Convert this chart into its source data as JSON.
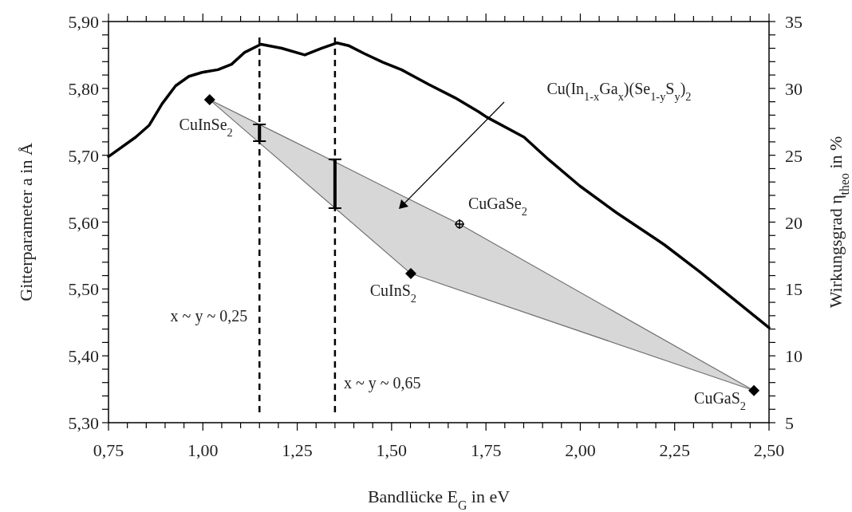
{
  "chart_data": {
    "type": "line",
    "xlabel": "Bandlücke E$_{G}$ in eV",
    "ylabel": "Gitterparameter a in Å",
    "y2label": "Wirkungsgrad η$_{theo}$ in %",
    "xlim": [
      0.75,
      2.5
    ],
    "ylim": [
      5.3,
      5.9
    ],
    "y2lim": [
      5,
      35
    ],
    "xticks": [
      {
        "value": 0.75,
        "label": "0,75"
      },
      {
        "value": 0.8,
        "label": null
      },
      {
        "value": 0.85,
        "label": null
      },
      {
        "value": 0.9,
        "label": null
      },
      {
        "value": 0.95,
        "label": null
      },
      {
        "value": 1.0,
        "label": "1,00"
      },
      {
        "value": 1.05,
        "label": null
      },
      {
        "value": 1.1,
        "label": null
      },
      {
        "value": 1.15,
        "label": null
      },
      {
        "value": 1.2,
        "label": null
      },
      {
        "value": 1.25,
        "label": "1,25"
      },
      {
        "value": 1.3,
        "label": null
      },
      {
        "value": 1.35,
        "label": null
      },
      {
        "value": 1.4,
        "label": null
      },
      {
        "value": 1.45,
        "label": null
      },
      {
        "value": 1.5,
        "label": "1,50"
      },
      {
        "value": 1.55,
        "label": null
      },
      {
        "value": 1.6,
        "label": null
      },
      {
        "value": 1.65,
        "label": null
      },
      {
        "value": 1.7,
        "label": null
      },
      {
        "value": 1.75,
        "label": "1,75"
      },
      {
        "value": 1.8,
        "label": null
      },
      {
        "value": 1.85,
        "label": null
      },
      {
        "value": 1.9,
        "label": null
      },
      {
        "value": 1.95,
        "label": null
      },
      {
        "value": 2.0,
        "label": "2,00"
      },
      {
        "value": 2.05,
        "label": null
      },
      {
        "value": 2.1,
        "label": null
      },
      {
        "value": 2.15,
        "label": null
      },
      {
        "value": 2.2,
        "label": null
      },
      {
        "value": 2.25,
        "label": "2,25"
      },
      {
        "value": 2.3,
        "label": null
      },
      {
        "value": 2.35,
        "label": null
      },
      {
        "value": 2.4,
        "label": null
      },
      {
        "value": 2.45,
        "label": null
      },
      {
        "value": 2.5,
        "label": "2,50"
      }
    ],
    "yticks": [
      {
        "value": 5.3,
        "label": "5,30"
      },
      {
        "value": 5.32,
        "label": null
      },
      {
        "value": 5.34,
        "label": null
      },
      {
        "value": 5.36,
        "label": null
      },
      {
        "value": 5.38,
        "label": null
      },
      {
        "value": 5.4,
        "label": "5,40"
      },
      {
        "value": 5.42,
        "label": null
      },
      {
        "value": 5.44,
        "label": null
      },
      {
        "value": 5.46,
        "label": null
      },
      {
        "value": 5.48,
        "label": null
      },
      {
        "value": 5.5,
        "label": "5,50"
      },
      {
        "value": 5.52,
        "label": null
      },
      {
        "value": 5.54,
        "label": null
      },
      {
        "value": 5.56,
        "label": null
      },
      {
        "value": 5.58,
        "label": null
      },
      {
        "value": 5.6,
        "label": "5,60"
      },
      {
        "value": 5.62,
        "label": null
      },
      {
        "value": 5.64,
        "label": null
      },
      {
        "value": 5.66,
        "label": null
      },
      {
        "value": 5.68,
        "label": null
      },
      {
        "value": 5.7,
        "label": "5,70"
      },
      {
        "value": 5.72,
        "label": null
      },
      {
        "value": 5.74,
        "label": null
      },
      {
        "value": 5.76,
        "label": null
      },
      {
        "value": 5.78,
        "label": null
      },
      {
        "value": 5.8,
        "label": "5,80"
      },
      {
        "value": 5.82,
        "label": null
      },
      {
        "value": 5.84,
        "label": null
      },
      {
        "value": 5.86,
        "label": null
      },
      {
        "value": 5.88,
        "label": null
      },
      {
        "value": 5.9,
        "label": "5,90"
      }
    ],
    "y2ticks": [
      5,
      {
        "value": 6,
        "label": null
      },
      {
        "value": 7,
        "label": null
      },
      {
        "value": 8,
        "label": null
      },
      {
        "value": 9,
        "label": null
      },
      10,
      {
        "value": 11,
        "label": null
      },
      {
        "value": 12,
        "label": null
      },
      {
        "value": 13,
        "label": null
      },
      {
        "value": 14,
        "label": null
      },
      15,
      {
        "value": 16,
        "label": null
      },
      {
        "value": 17,
        "label": null
      },
      {
        "value": 18,
        "label": null
      },
      {
        "value": 19,
        "label": null
      },
      20,
      {
        "value": 21,
        "label": null
      },
      {
        "value": 22,
        "label": null
      },
      {
        "value": 23,
        "label": null
      },
      {
        "value": 24,
        "label": null
      },
      25,
      {
        "value": 26,
        "label": null
      },
      {
        "value": 27,
        "label": null
      },
      {
        "value": 28,
        "label": null
      },
      {
        "value": 29,
        "label": null
      },
      30,
      {
        "value": 31,
        "label": null
      },
      {
        "value": 32,
        "label": null
      },
      {
        "value": 33,
        "label": null
      },
      {
        "value": 34,
        "label": null
      },
      35
    ],
    "series": [
      {
        "type": "line",
        "line_style": "solid",
        "color": "#707070",
        "x": [
          1.018,
          1.15,
          1.35,
          1.551,
          1.68,
          2.46
        ],
        "values": [
          5.783,
          5.746,
          5.69,
          5.633,
          5.597,
          5.348
        ],
        "upper": [
          5.783,
          5.746,
          5.69,
          5.633,
          5.597,
          5.348
        ],
        "lower": [
          5.783,
          5.719,
          5.621,
          5.523,
          5.498,
          5.348
        ]
      },
      {
        "type": "line",
        "line_style": "solid",
        "color": "#707070",
        "x": [
          1.018,
          1.551,
          2.46
        ],
        "values": [
          5.783,
          5.523,
          5.348
        ]
      },
      {
        "axis": "y2",
        "color": "#000000",
        "x": [
          0.75,
          0.822,
          0.858,
          0.892,
          0.928,
          0.963,
          0.998,
          1.04,
          1.076,
          1.111,
          1.154,
          1.209,
          1.27,
          1.314,
          1.355,
          1.386,
          1.428,
          1.477,
          1.526,
          1.598,
          1.668,
          1.731,
          1.752,
          1.851,
          1.915,
          1.999,
          2.096,
          2.202,
          2.223,
          2.316,
          2.5
        ],
        "values": [
          24.9,
          26.35,
          27.25,
          28.85,
          30.2,
          30.9,
          31.2,
          31.4,
          31.8,
          32.7,
          33.3,
          33.0,
          32.5,
          33.0,
          33.4,
          33.2,
          32.6,
          31.95,
          31.4,
          30.3,
          29.3,
          28.25,
          27.85,
          26.35,
          24.7,
          22.7,
          20.7,
          18.7,
          18.3,
          16.3,
          12.1
        ]
      },
      {
        "type": "bar",
        "color": "#000000",
        "x": [
          1.15,
          1.35
        ],
        "base": [
          5.721,
          5.621
        ],
        "values": [
          0.025,
          0.073
        ]
      },
      {
        "type": "scatter",
        "marker": "diamond",
        "color": "#000000",
        "x": [
          1.018,
          1.551,
          2.46
        ],
        "values": [
          5.783,
          5.523,
          5.348
        ]
      },
      {
        "type": "scatter",
        "marker": "circle",
        "color": "#000000",
        "x": [
          1.68
        ],
        "values": [
          5.597
        ]
      }
    ],
    "ref_lines": [
      {
        "axis": "x",
        "value": 1.15,
        "label": "x ~ y ~ 0,25",
        "line_style": "dashed",
        "color": "#000000"
      },
      {
        "axis": "x",
        "value": 1.35,
        "label": "x ~ y ~ 0,65",
        "line_style": "dashed",
        "color": "#000000"
      }
    ],
    "annotations": [
      {
        "text": "CuInSe$_{2}$",
        "x": 1.018,
        "y": 5.783
      },
      {
        "text": "CuInS$_{2}$",
        "x": 1.551,
        "y": 5.523
      },
      {
        "text": "CuGaSe$_{2}$",
        "x": 1.68,
        "y": 5.597
      },
      {
        "text": "CuGaS$_{2}$",
        "x": 2.46,
        "y": 5.348
      },
      "Cu(In$_{1-x}$Ga$_{x}$)(Se$_{1-y}$S$_{y}$)$_{2}$"
    ],
    "grid": false
  }
}
